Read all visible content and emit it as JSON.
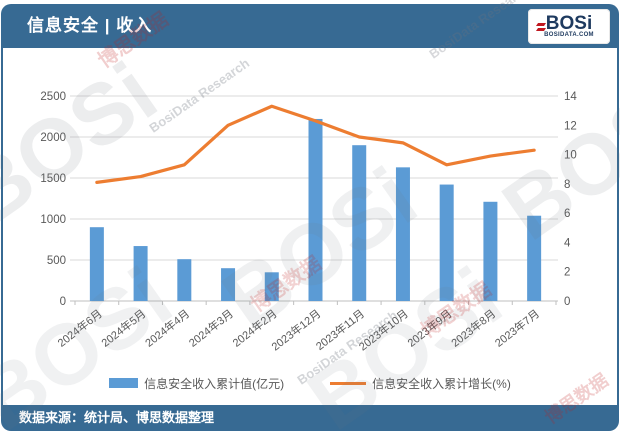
{
  "header": {
    "title": "信息安全 | 收入",
    "logo": {
      "text": "BOSi",
      "subtext": "BOSIDATA.COM"
    }
  },
  "footer": {
    "source": "数据来源：统计局、博思数据整理"
  },
  "colors": {
    "banner": "#376A93",
    "bar": "#5B9BD5",
    "line": "#ED7D31",
    "grid": "#D9D9D9",
    "baseline": "#BFBFBF",
    "axis_text": "#595959",
    "logo_navy": "#1E3A5F",
    "logo_red": "#C01820"
  },
  "watermark_texts": [
    "BOSi",
    "博思数据",
    "BosiData Research"
  ],
  "chart_data": {
    "type": "combo bar+line, dual axis",
    "categories": [
      "2024年6月",
      "2024年5月",
      "2024年4月",
      "2024年3月",
      "2024年2月",
      "2023年12月",
      "2023年11月",
      "2023年10月",
      "2023年9月",
      "2023年8月",
      "2023年7月"
    ],
    "series": [
      {
        "name": "信息安全收入累计值(亿元)",
        "type": "bar",
        "axis": "left",
        "values": [
          900,
          670,
          510,
          400,
          350,
          2220,
          1900,
          1630,
          1420,
          1210,
          1040
        ]
      },
      {
        "name": "信息安全收入累计增长(%)",
        "type": "line",
        "axis": "right",
        "values": [
          8.1,
          8.5,
          9.3,
          12.0,
          13.3,
          12.3,
          11.2,
          10.8,
          9.3,
          9.9,
          10.3
        ]
      }
    ],
    "left_axis": {
      "min": 0,
      "max": 2500,
      "step": 500,
      "tick_labels": [
        "0",
        "500",
        "1000",
        "1500",
        "2000",
        "2500"
      ]
    },
    "right_axis": {
      "min": 0,
      "max": 14,
      "step": 2,
      "tick_labels": [
        "0",
        "2",
        "4",
        "6",
        "8",
        "10",
        "12",
        "14"
      ]
    },
    "grid": "horizontal",
    "legend_position": "bottom"
  }
}
